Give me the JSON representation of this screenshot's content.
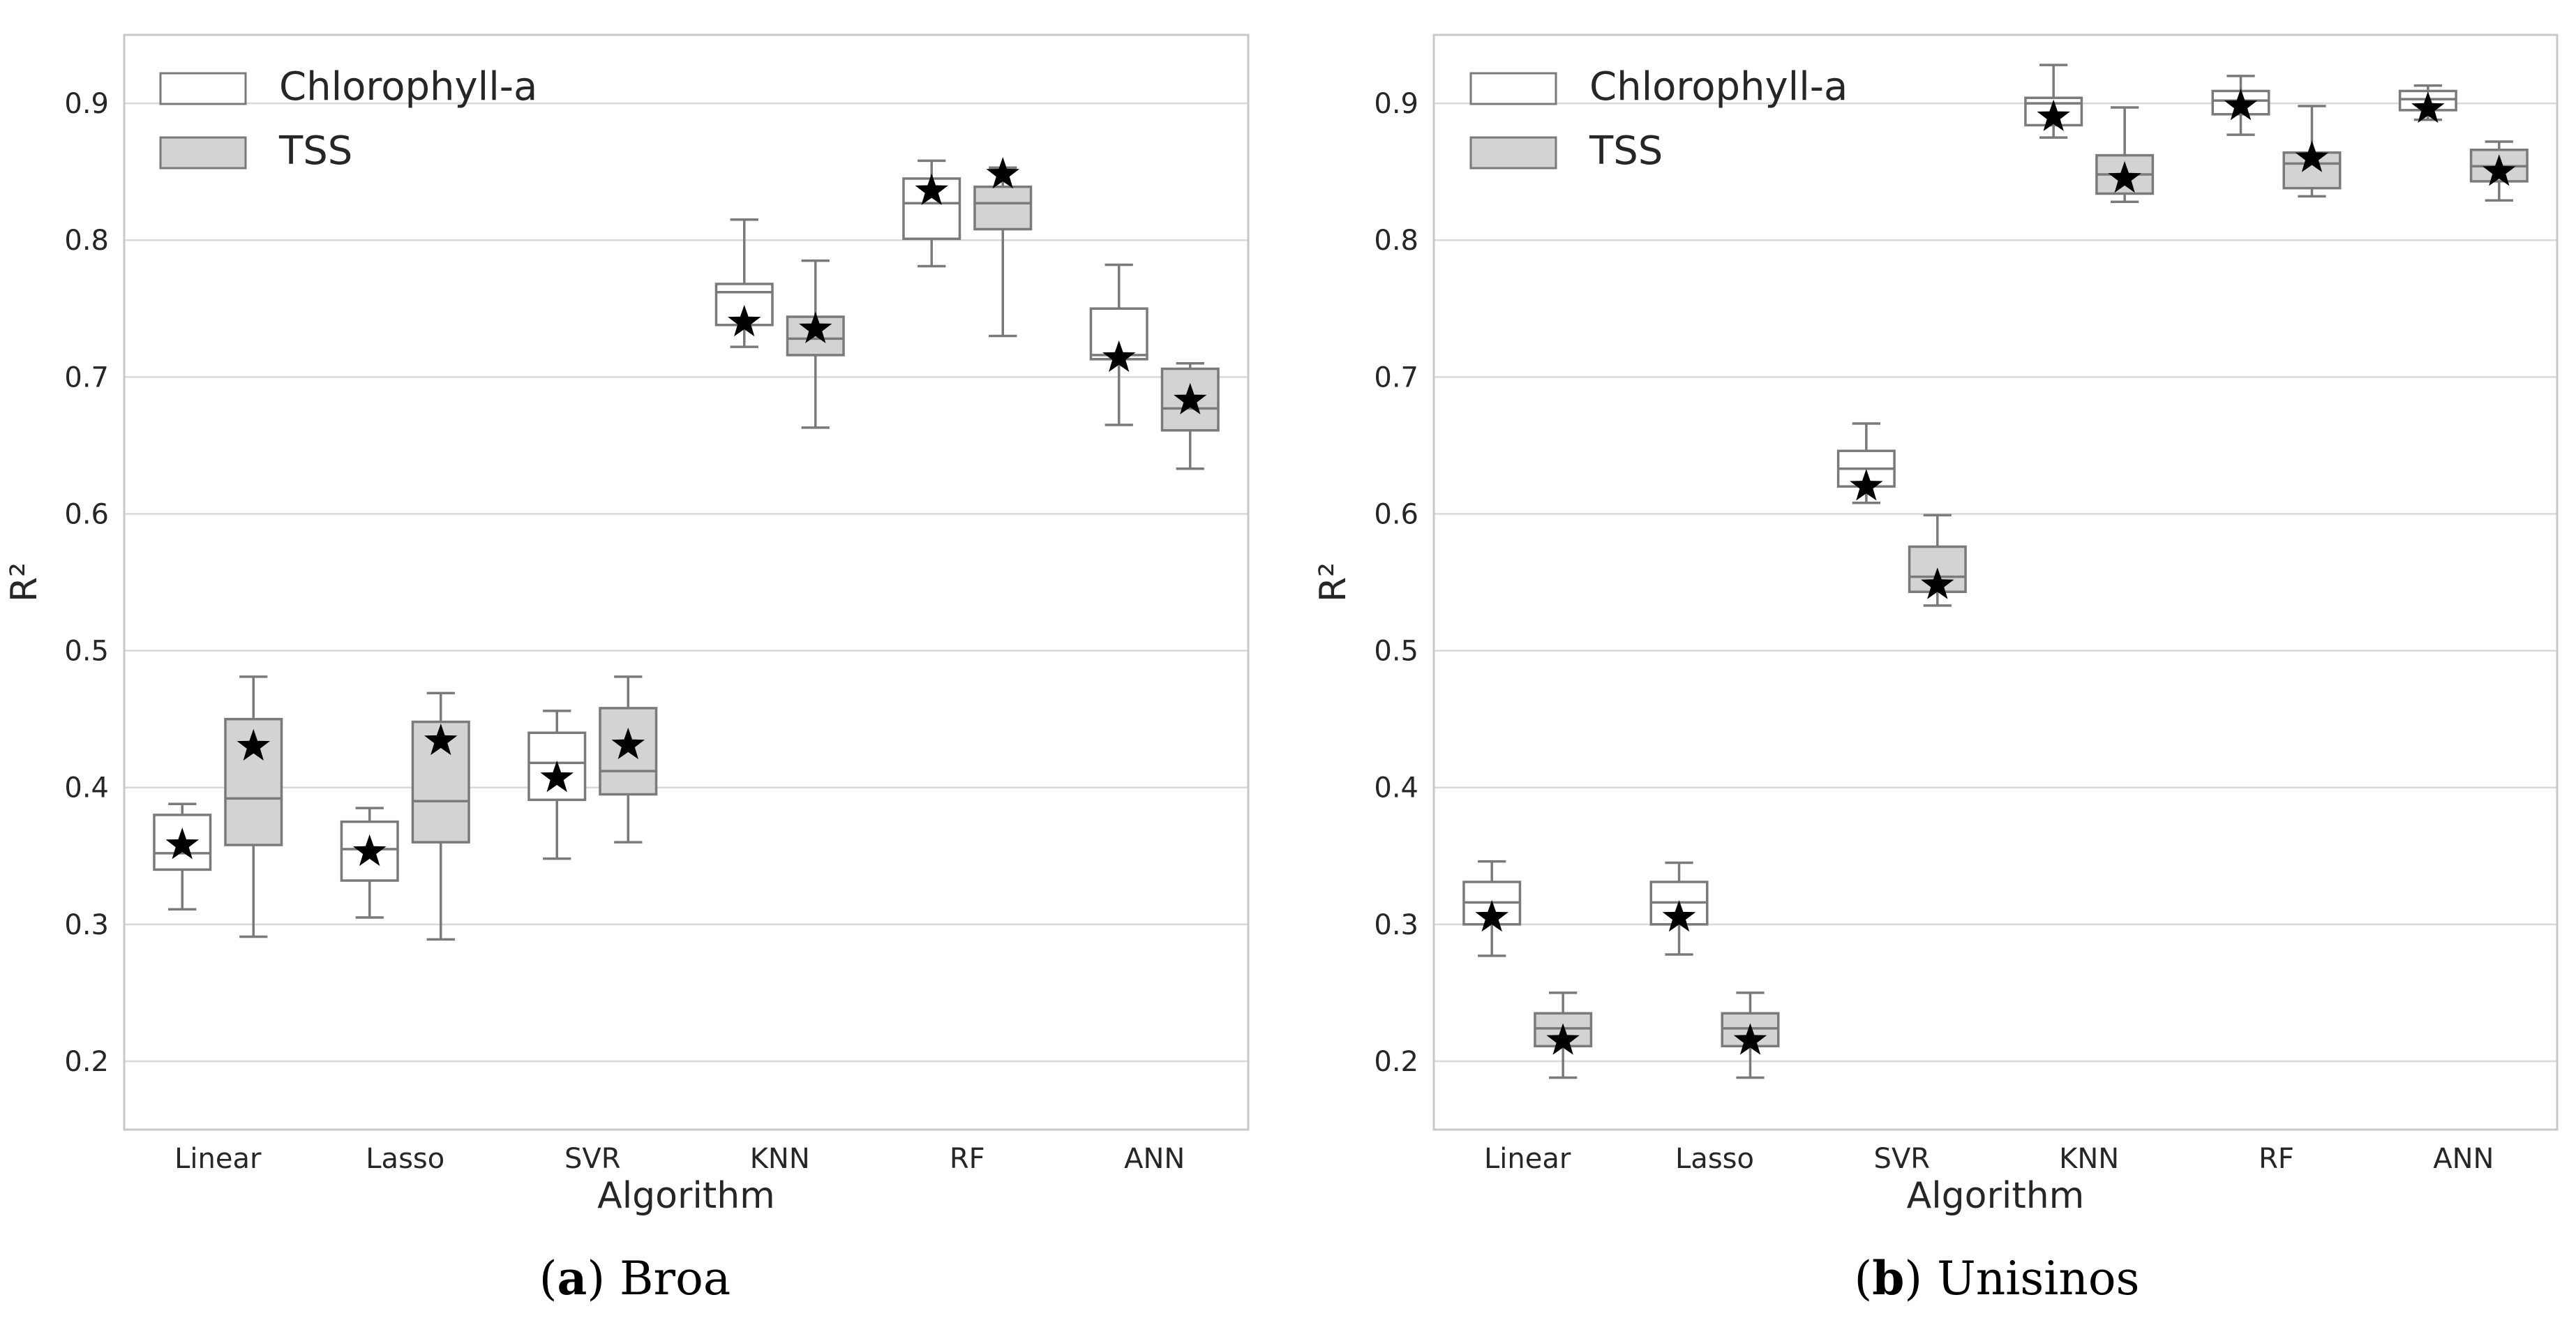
{
  "colors": {
    "chlorophyll_box": "#ffffff",
    "tss_box": "#d3d3d3",
    "box_edge": "#7a7a7a",
    "grid": "#d9d9d9",
    "mean_marker": "#000000"
  },
  "chart_data": [
    {
      "type": "box",
      "panel_letter": "(a)",
      "panel_name": "Broa",
      "xlabel": "Algorithm",
      "ylabel": "R²",
      "ylim": [
        0.15,
        0.95
      ],
      "yticks": [
        "0.2",
        "0.3",
        "0.4",
        "0.5",
        "0.6",
        "0.7",
        "0.8",
        "0.9"
      ],
      "grid": "horizontal",
      "legend_placement": "top-left",
      "categories": [
        "Linear",
        "Lasso",
        "SVR",
        "KNN",
        "RF",
        "ANN"
      ],
      "series": [
        {
          "name": "Chlorophyll-a",
          "color": "#ffffff",
          "boxes": [
            {
              "min": 0.311,
              "q1": 0.34,
              "median": 0.352,
              "q3": 0.38,
              "max": 0.388,
              "mean": 0.358
            },
            {
              "min": 0.305,
              "q1": 0.332,
              "median": 0.355,
              "q3": 0.375,
              "max": 0.385,
              "mean": 0.353
            },
            {
              "min": 0.348,
              "q1": 0.391,
              "median": 0.418,
              "q3": 0.44,
              "max": 0.456,
              "mean": 0.407
            },
            {
              "min": 0.722,
              "q1": 0.738,
              "median": 0.762,
              "q3": 0.768,
              "max": 0.815,
              "mean": 0.74
            },
            {
              "min": 0.781,
              "q1": 0.801,
              "median": 0.827,
              "q3": 0.845,
              "max": 0.858,
              "mean": 0.836
            },
            {
              "min": 0.665,
              "q1": 0.713,
              "median": 0.716,
              "q3": 0.75,
              "max": 0.782,
              "mean": 0.714
            }
          ]
        },
        {
          "name": "TSS",
          "color": "#d3d3d3",
          "boxes": [
            {
              "min": 0.291,
              "q1": 0.358,
              "median": 0.392,
              "q3": 0.45,
              "max": 0.481,
              "mean": 0.43
            },
            {
              "min": 0.289,
              "q1": 0.36,
              "median": 0.39,
              "q3": 0.448,
              "max": 0.469,
              "mean": 0.434
            },
            {
              "min": 0.36,
              "q1": 0.395,
              "median": 0.412,
              "q3": 0.458,
              "max": 0.481,
              "mean": 0.431
            },
            {
              "min": 0.663,
              "q1": 0.716,
              "median": 0.728,
              "q3": 0.744,
              "max": 0.785,
              "mean": 0.735
            },
            {
              "min": 0.73,
              "q1": 0.808,
              "median": 0.827,
              "q3": 0.839,
              "max": 0.853,
              "mean": 0.848
            },
            {
              "min": 0.633,
              "q1": 0.661,
              "median": 0.677,
              "q3": 0.706,
              "max": 0.71,
              "mean": 0.683
            }
          ]
        }
      ]
    },
    {
      "type": "box",
      "panel_letter": "(b)",
      "panel_name": "Unisinos",
      "xlabel": "Algorithm",
      "ylabel": "R²",
      "ylim": [
        0.15,
        0.95
      ],
      "yticks": [
        "0.2",
        "0.3",
        "0.4",
        "0.5",
        "0.6",
        "0.7",
        "0.8",
        "0.9"
      ],
      "grid": "horizontal",
      "legend_placement": "top-left",
      "categories": [
        "Linear",
        "Lasso",
        "SVR",
        "KNN",
        "RF",
        "ANN"
      ],
      "series": [
        {
          "name": "Chlorophyll-a",
          "color": "#ffffff",
          "boxes": [
            {
              "min": 0.277,
              "q1": 0.3,
              "median": 0.316,
              "q3": 0.331,
              "max": 0.346,
              "mean": 0.305
            },
            {
              "min": 0.278,
              "q1": 0.3,
              "median": 0.316,
              "q3": 0.331,
              "max": 0.345,
              "mean": 0.305
            },
            {
              "min": 0.608,
              "q1": 0.62,
              "median": 0.633,
              "q3": 0.646,
              "max": 0.666,
              "mean": 0.62
            },
            {
              "min": 0.875,
              "q1": 0.884,
              "median": 0.9,
              "q3": 0.904,
              "max": 0.928,
              "mean": 0.89
            },
            {
              "min": 0.877,
              "q1": 0.892,
              "median": 0.902,
              "q3": 0.909,
              "max": 0.92,
              "mean": 0.898
            },
            {
              "min": 0.888,
              "q1": 0.895,
              "median": 0.903,
              "q3": 0.909,
              "max": 0.913,
              "mean": 0.896
            }
          ]
        },
        {
          "name": "TSS",
          "color": "#d3d3d3",
          "boxes": [
            {
              "min": 0.188,
              "q1": 0.211,
              "median": 0.224,
              "q3": 0.235,
              "max": 0.25,
              "mean": 0.215
            },
            {
              "min": 0.188,
              "q1": 0.211,
              "median": 0.224,
              "q3": 0.235,
              "max": 0.25,
              "mean": 0.215
            },
            {
              "min": 0.533,
              "q1": 0.543,
              "median": 0.554,
              "q3": 0.576,
              "max": 0.599,
              "mean": 0.548
            },
            {
              "min": 0.828,
              "q1": 0.834,
              "median": 0.848,
              "q3": 0.862,
              "max": 0.897,
              "mean": 0.845
            },
            {
              "min": 0.832,
              "q1": 0.838,
              "median": 0.856,
              "q3": 0.864,
              "max": 0.898,
              "mean": 0.86
            },
            {
              "min": 0.829,
              "q1": 0.843,
              "median": 0.854,
              "q3": 0.866,
              "max": 0.872,
              "mean": 0.85
            }
          ]
        }
      ]
    }
  ]
}
